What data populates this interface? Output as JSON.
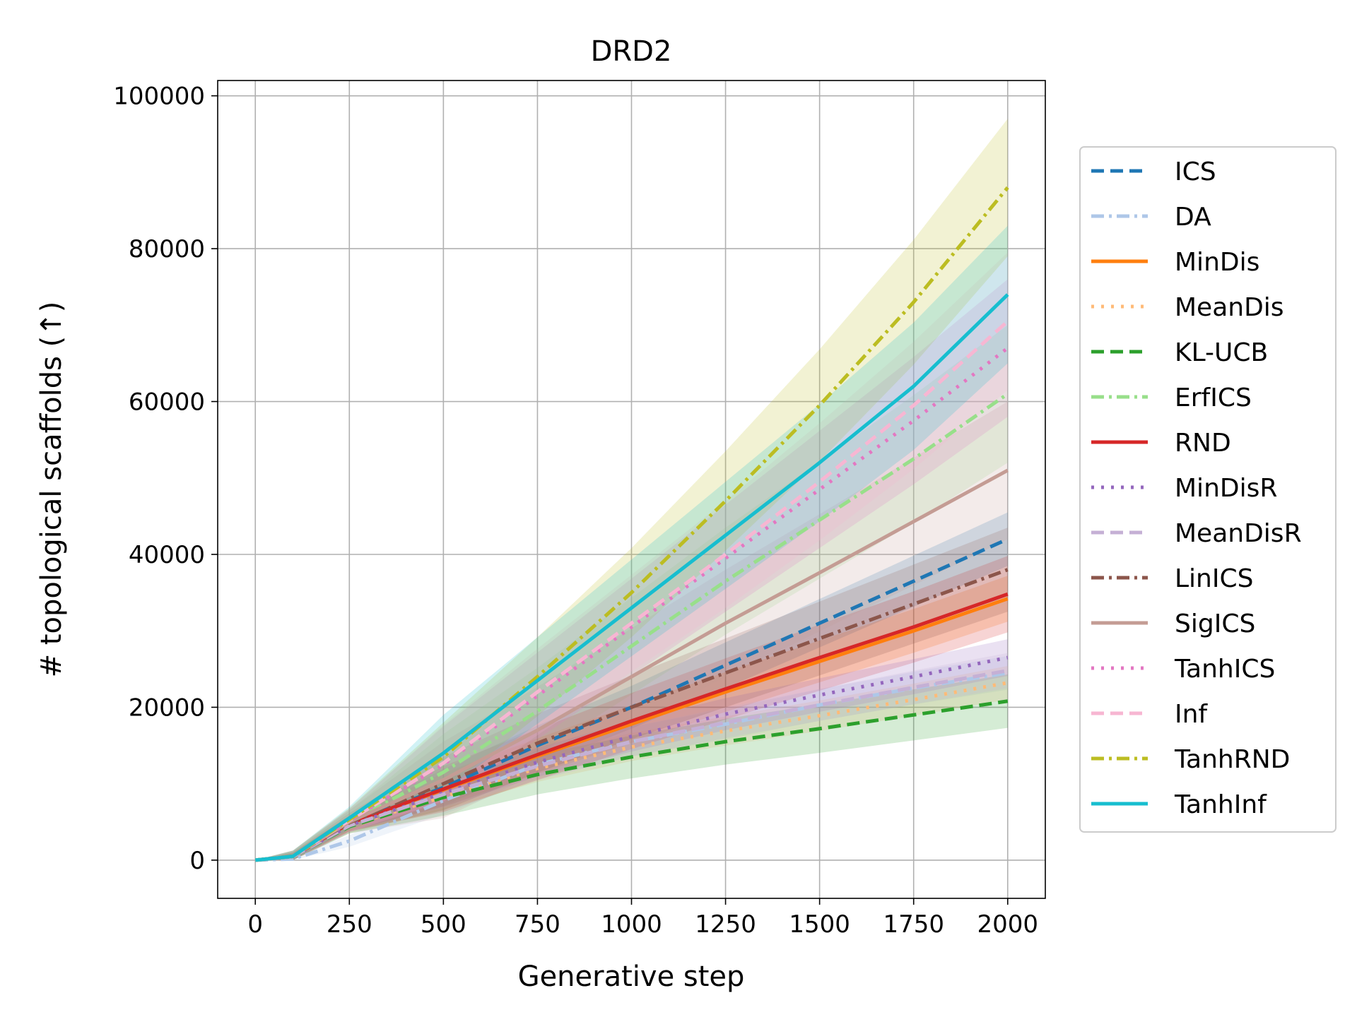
{
  "chart_data": {
    "type": "line",
    "title": "DRD2",
    "xlabel": "Generative step",
    "ylabel": "# topological scaffolds (↑)",
    "xlim": [
      -100,
      2100
    ],
    "ylim": [
      -5000,
      102000
    ],
    "xticks": [
      0,
      250,
      500,
      750,
      1000,
      1250,
      1500,
      1750,
      2000
    ],
    "yticks": [
      0,
      20000,
      40000,
      60000,
      80000,
      100000
    ],
    "grid": true,
    "legend_position": "right-outside",
    "x": [
      0,
      100,
      250,
      500,
      750,
      1000,
      1250,
      1500,
      1750,
      2000
    ],
    "series": [
      {
        "name": "ICS",
        "color": "#1f77b4",
        "dash": "dashed",
        "values": [
          0,
          500,
          4800,
          9500,
          15000,
          20000,
          25500,
          31000,
          36500,
          42000
        ],
        "band": [
          2000,
          2400,
          3000,
          3500
        ]
      },
      {
        "name": "DA",
        "color": "#aec7e8",
        "dash": "dashdot",
        "values": [
          0,
          150,
          2500,
          7800,
          12500,
          15500,
          17800,
          20300,
          22500,
          24500
        ],
        "band": [
          1500,
          1800,
          2000,
          2200
        ]
      },
      {
        "name": "MinDis",
        "color": "#ff7f0e",
        "dash": "solid",
        "values": [
          0,
          500,
          4800,
          9200,
          13600,
          17800,
          22000,
          26000,
          30000,
          34200
        ],
        "band": [
          1800,
          2200,
          2600,
          3000
        ]
      },
      {
        "name": "MeanDis",
        "color": "#ffbb78",
        "dash": "dotted",
        "values": [
          0,
          450,
          4500,
          8300,
          12000,
          14800,
          16900,
          18900,
          21000,
          23200
        ],
        "band": [
          1500,
          1700,
          1900,
          2200
        ]
      },
      {
        "name": "KL-UCB",
        "color": "#2ca02c",
        "dash": "dashed",
        "values": [
          0,
          450,
          4400,
          8200,
          11200,
          13500,
          15500,
          17200,
          19000,
          20800
        ],
        "band": [
          1800,
          2400,
          3000,
          3500
        ]
      },
      {
        "name": "ErfICS",
        "color": "#98df8a",
        "dash": "dashdot",
        "values": [
          0,
          500,
          5000,
          11500,
          19500,
          28000,
          36500,
          44500,
          52500,
          61000
        ],
        "band": [
          3000,
          5000,
          7000,
          9000
        ]
      },
      {
        "name": "RND",
        "color": "#d62728",
        "dash": "solid",
        "values": [
          0,
          500,
          4800,
          9300,
          13800,
          18200,
          22400,
          26500,
          30500,
          34800
        ],
        "band": [
          2000,
          3000,
          4000,
          5000
        ]
      },
      {
        "name": "MinDisR",
        "color": "#9467bd",
        "dash": "dotted",
        "values": [
          0,
          450,
          4500,
          8800,
          12800,
          16200,
          19100,
          21600,
          24000,
          26500
        ],
        "band": [
          1500,
          1800,
          2100,
          2400
        ]
      },
      {
        "name": "MeanDisR",
        "color": "#c5b0d5",
        "dash": "dashed",
        "values": [
          0,
          450,
          4500,
          8600,
          12300,
          15500,
          18000,
          20300,
          22600,
          24800
        ],
        "band": [
          1500,
          1800,
          2000,
          2300
        ]
      },
      {
        "name": "LinICS",
        "color": "#8c564b",
        "dash": "dashdot",
        "values": [
          0,
          500,
          4900,
          10000,
          15300,
          20000,
          24500,
          29000,
          33500,
          38000
        ],
        "band": [
          2500,
          3500,
          4500,
          5500
        ]
      },
      {
        "name": "SigICS",
        "color": "#c49c94",
        "dash": "solid",
        "values": [
          0,
          500,
          5000,
          10500,
          17000,
          24000,
          31000,
          37600,
          44300,
          51000
        ],
        "band": [
          3000,
          5000,
          7000,
          9000
        ]
      },
      {
        "name": "TanhICS",
        "color": "#e377c2",
        "dash": "dotted",
        "values": [
          0,
          500,
          5200,
          12500,
          21500,
          30500,
          39500,
          48500,
          57500,
          67000
        ],
        "band": [
          3000,
          5000,
          7000,
          9000
        ]
      },
      {
        "name": "Inf",
        "color": "#f7b6d2",
        "dash": "dashed",
        "values": [
          0,
          500,
          5200,
          12700,
          22000,
          31000,
          40000,
          49500,
          59500,
          70500
        ],
        "band": [
          3000,
          5000,
          7000,
          9000
        ]
      },
      {
        "name": "TanhRND",
        "color": "#bcbd22",
        "dash": "dashdot",
        "values": [
          0,
          500,
          5300,
          13500,
          24000,
          35000,
          47000,
          59500,
          73000,
          88000
        ],
        "band": [
          3000,
          4500,
          6500,
          9000
        ]
      },
      {
        "name": "TanhInf",
        "color": "#17becf",
        "dash": "solid",
        "values": [
          0,
          500,
          5500,
          14000,
          23500,
          33000,
          42500,
          52000,
          62000,
          74000
        ],
        "band": [
          3000,
          5000,
          7000,
          9000
        ]
      }
    ]
  }
}
